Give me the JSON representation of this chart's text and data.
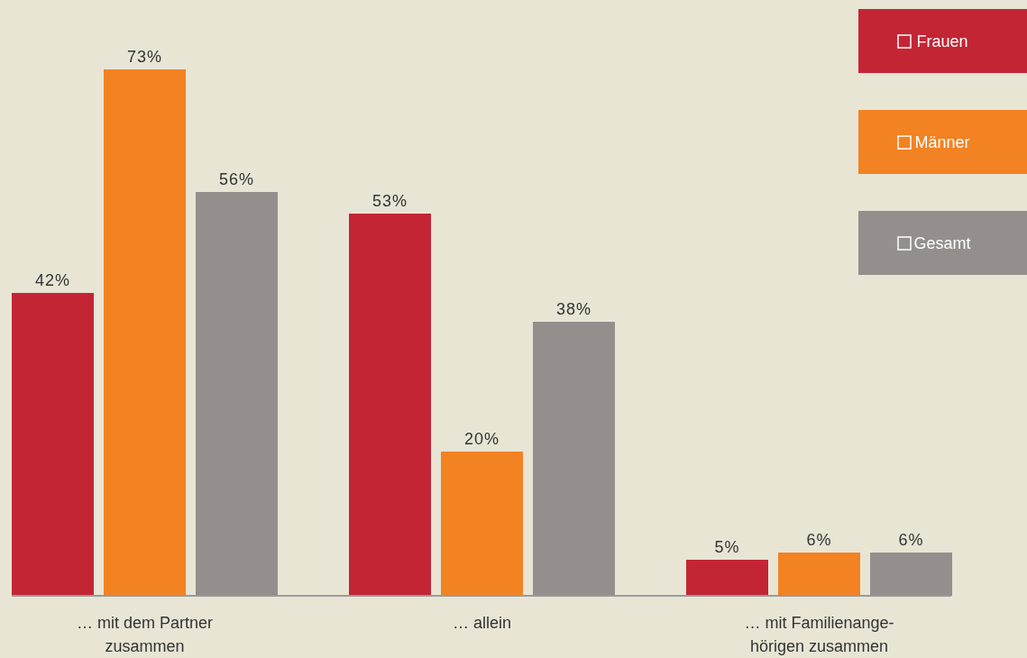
{
  "chart_data": {
    "type": "bar",
    "categories": [
      "… mit dem Partner\nzusammen",
      "… allein",
      "… mit Familienange-\nhörigen zusammen"
    ],
    "series": [
      {
        "name": "Frauen",
        "color": "#c32535",
        "values": [
          42,
          53,
          5
        ],
        "value_labels": [
          "42%",
          "53%",
          "5%"
        ]
      },
      {
        "name": "Männer",
        "color": "#f28222",
        "values": [
          73,
          20,
          6
        ],
        "value_labels": [
          "73%",
          "20%",
          "6%"
        ]
      },
      {
        "name": "Gesamt",
        "color": "#948f8d",
        "values": [
          56,
          38,
          6
        ],
        "value_labels": [
          "56%",
          "38%",
          "6%"
        ]
      }
    ],
    "legend": "top right"
  }
}
